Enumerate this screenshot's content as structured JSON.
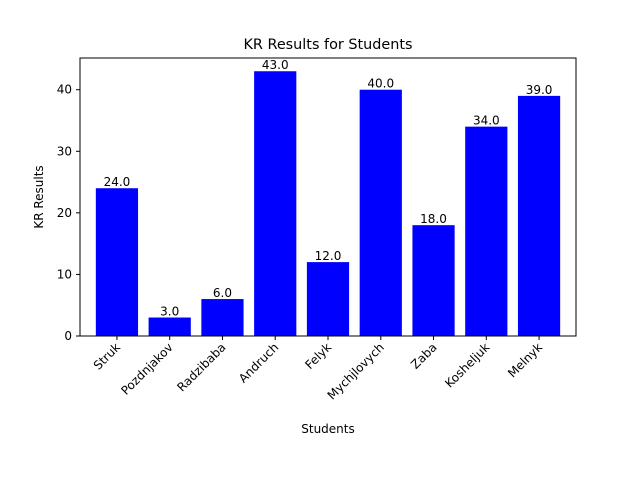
{
  "chart_data": {
    "type": "bar",
    "title": "KR Results for Students",
    "xlabel": "Students",
    "ylabel": "KR Results",
    "categories": [
      "Struk",
      "Pozdnjakov",
      "Radzibaba",
      "Andruch",
      "Felyk",
      "Mychjlovych",
      "Zaba",
      "Kosheljuk",
      "Melnyk"
    ],
    "values": [
      24.0,
      3.0,
      6.0,
      43.0,
      12.0,
      40.0,
      18.0,
      34.0,
      39.0
    ],
    "value_labels": [
      "24.0",
      "3.0",
      "6.0",
      "43.0",
      "12.0",
      "40.0",
      "18.0",
      "34.0",
      "39.0"
    ],
    "ylim": [
      0,
      45.15
    ],
    "yticks": [
      0,
      10,
      20,
      30,
      40
    ],
    "bar_color": "#0000ff",
    "grid": false,
    "legend": "none"
  }
}
